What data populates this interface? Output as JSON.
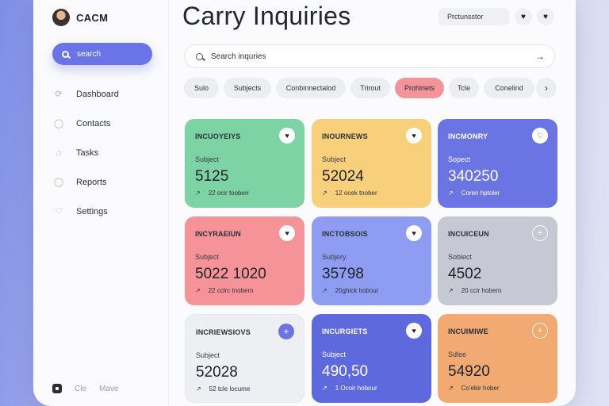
{
  "sidebar": {
    "brand": "CACM",
    "search_label": "search",
    "items": [
      {
        "label": "Dashboard",
        "icon": "⟳"
      },
      {
        "label": "Contacts",
        "icon": "◯"
      },
      {
        "label": "Tasks",
        "icon": "⌂"
      },
      {
        "label": "Reports",
        "icon": "◯"
      },
      {
        "label": "Settings",
        "icon": "♡"
      }
    ],
    "footer": {
      "left": "Cle",
      "right": "Mave"
    }
  },
  "header": {
    "title": "Carry Inquiries",
    "profile_field": "Prctunsstor"
  },
  "search": {
    "placeholder": "Search inquries"
  },
  "chips": [
    "Sulo",
    "Subjects",
    "Conbinnectalod",
    "Trirout",
    "Prohiriets",
    "Tcle",
    "Conelind"
  ],
  "cards": [
    {
      "title": "INCUOYEIYS",
      "subject": "Subject",
      "value": "5125",
      "foot": "22 ocir tooberr",
      "color": "#7ed3a4",
      "icon": "♥"
    },
    {
      "title": "INOURNEWS",
      "subject": "Subject",
      "value": "52024",
      "foot": "12 ocek tnober",
      "color": "#f8cf7a",
      "icon": "♥"
    },
    {
      "title": "INCMONRY",
      "subject": "Sopect",
      "value": "340250",
      "foot": "Coren hptoler",
      "color": "#6a74e2",
      "icon": "♡"
    },
    {
      "title": "INCYRAEIUN",
      "subject": "Subject",
      "value": "5022 1020",
      "foot": "22 cclrc tnobern",
      "color": "#f59399",
      "icon": "♥"
    },
    {
      "title": "INCTOBSOIS",
      "subject": "Subjery",
      "value": "35798",
      "foot": "20ghick hobour",
      "color": "#8e9df1",
      "icon": "♥"
    },
    {
      "title": "INCUICEUN",
      "subject": "Sobiect",
      "value": "4502",
      "foot": "20 ccir hobern",
      "color": "#c6c9d3",
      "icon": "+"
    },
    {
      "title": "INCRIEWSIOVS",
      "subject": "Subject",
      "value": "52028",
      "foot": "52 tcle locume",
      "color": "#eeeff3",
      "icon": "+"
    },
    {
      "title": "INCURGIETS",
      "subject": "Subject",
      "value": "490,50",
      "foot": "1 Ocoir hobour",
      "color": "#5d69dc",
      "icon": "♥"
    },
    {
      "title": "INCUIMIWE",
      "subject": "Sdlee",
      "value": "54920",
      "foot": "Co'ebir hober",
      "color": "#f1ab72",
      "icon": "+"
    }
  ]
}
